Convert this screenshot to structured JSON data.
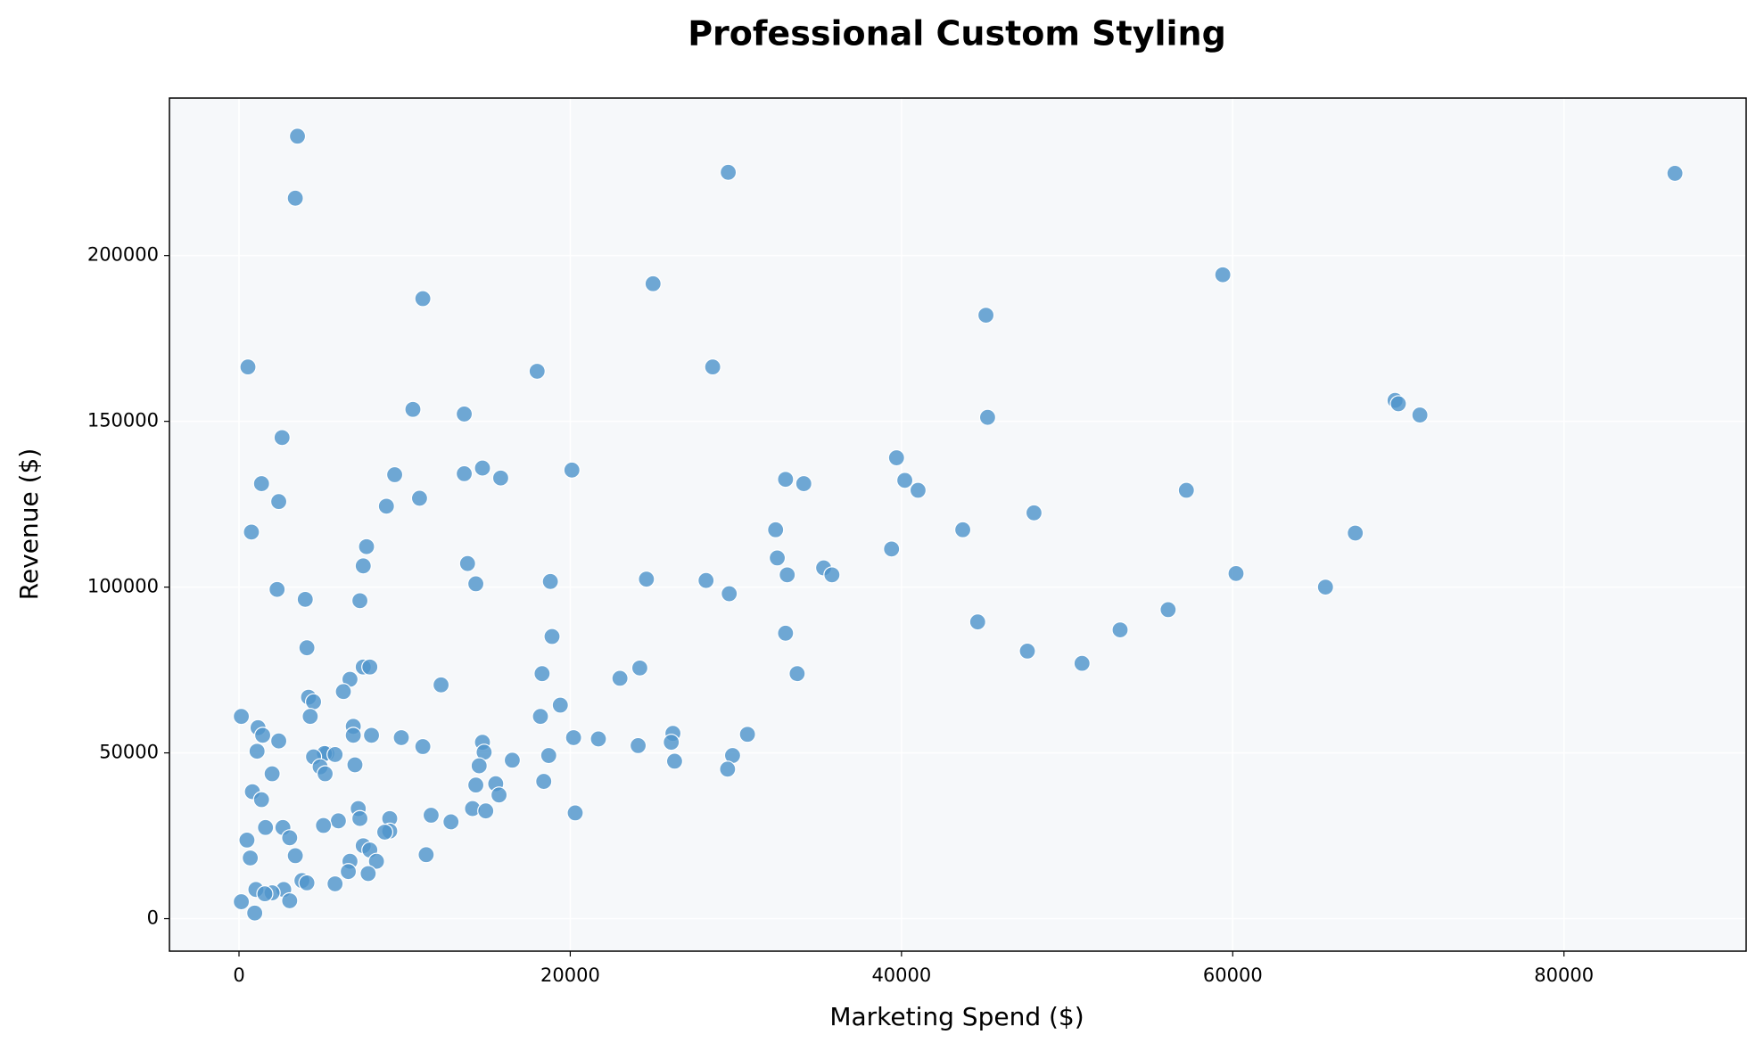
{
  "chart_data": {
    "type": "scatter",
    "title": "Professional Custom Styling",
    "xlabel": "Marketing Spend ($)",
    "ylabel": "Revenue ($)",
    "color": "#4f95cc",
    "background": "#f6f8fa",
    "grid": true,
    "xlim": [
      -4200,
      91000
    ],
    "ylim": [
      -9800,
      247500
    ],
    "xticks": [
      0,
      20000,
      40000,
      60000,
      80000
    ],
    "yticks": [
      0,
      50000,
      100000,
      150000,
      200000
    ],
    "x": [
      3530,
      3400,
      29540,
      86700,
      59400,
      25000,
      45100,
      11100,
      540,
      28600,
      18000,
      69800,
      70000,
      71300,
      45200,
      13600,
      10500,
      2600,
      39700,
      14700,
      20100,
      13600,
      9400,
      15800,
      33000,
      40200,
      34100,
      1360,
      41000,
      57200,
      10900,
      2400,
      8900,
      48000,
      32400,
      43700,
      750,
      67400,
      39400,
      7700,
      32500,
      13800,
      7500,
      35300,
      35800,
      33100,
      60200,
      24600,
      28200,
      18800,
      14300,
      65600,
      2300,
      29600,
      4000,
      7300,
      56100,
      44600,
      33000,
      53200,
      18900,
      47600,
      4100,
      50900,
      7500,
      7900,
      24200,
      18300,
      33700,
      23000,
      6700,
      12200,
      6300,
      4200,
      4500,
      19400,
      140,
      4300,
      18200,
      6900,
      1150,
      30700,
      26200,
      1430,
      8000,
      6900,
      9800,
      20200,
      21700,
      2400,
      26100,
      14700,
      24100,
      11100,
      1090,
      5300,
      14800,
      5160,
      5800,
      29800,
      18700,
      4500,
      16500,
      26300,
      7000,
      14500,
      4900,
      29500,
      5200,
      2000,
      18400,
      14300,
      15500,
      810,
      15700,
      1360,
      7200,
      14100,
      14900,
      20300,
      11600,
      9100,
      7300,
      6000,
      12800,
      5100,
      1600,
      2650,
      9100,
      8800,
      3060,
      480,
      7500,
      7900,
      11300,
      3400,
      680,
      8300,
      6700,
      3800,
      4100,
      5800,
      6600,
      7800,
      1020,
      2700,
      2000,
      1560,
      140,
      3060,
      950
    ],
    "values": [
      236000,
      217300,
      225100,
      224800,
      194200,
      191500,
      182000,
      187000,
      166400,
      166400,
      165100,
      156300,
      155300,
      151900,
      151200,
      152200,
      153600,
      145100,
      139000,
      135900,
      135300,
      134200,
      133900,
      132900,
      132500,
      132200,
      131200,
      131200,
      129200,
      129200,
      126800,
      125800,
      124400,
      122400,
      117300,
      117300,
      116600,
      116300,
      111500,
      112200,
      108800,
      107100,
      106400,
      105800,
      103700,
      103700,
      104100,
      102400,
      102000,
      101700,
      101000,
      100000,
      99300,
      98000,
      96300,
      95900,
      93200,
      89500,
      86100,
      87100,
      85100,
      80700,
      81700,
      77000,
      75900,
      75900,
      75600,
      73900,
      73900,
      72500,
      72200,
      70500,
      68500,
      66800,
      65400,
      64400,
      61000,
      61000,
      61000,
      58000,
      57600,
      55600,
      55900,
      55300,
      55300,
      55300,
      54600,
      54600,
      54200,
      53600,
      53200,
      53200,
      52200,
      51900,
      50500,
      49800,
      50200,
      49800,
      49500,
      49200,
      49200,
      48800,
      47800,
      47500,
      46400,
      46100,
      45800,
      45100,
      43700,
      43700,
      41400,
      40300,
      40700,
      38300,
      37300,
      35900,
      33200,
      33200,
      32500,
      31900,
      31200,
      30200,
      30200,
      29500,
      29200,
      28100,
      27500,
      27500,
      26400,
      26100,
      24400,
      23700,
      22000,
      20700,
      19300,
      19000,
      18300,
      17300,
      17300,
      11500,
      10800,
      10500,
      14200,
      13600,
      8800,
      8800,
      7800,
      7500,
      5100,
      5400,
      1700
    ]
  }
}
